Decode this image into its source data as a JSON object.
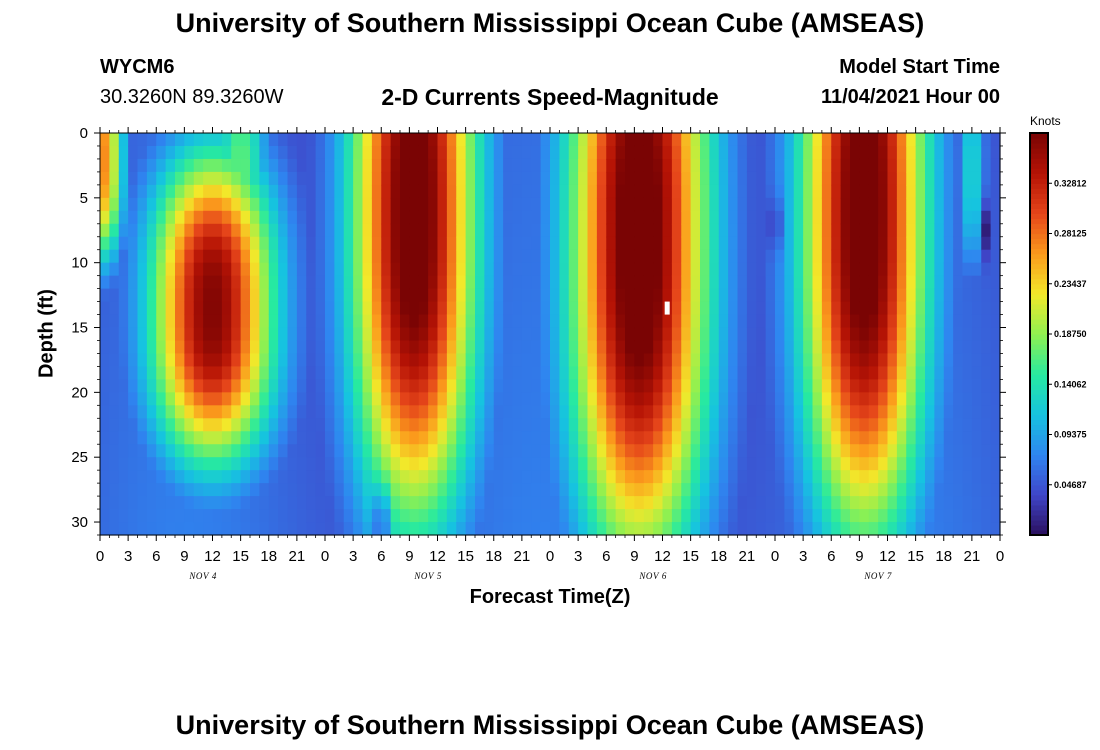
{
  "page": {
    "title_top": "University of Southern Mississippi Ocean Cube (AMSEAS)",
    "title_bottom": "University of Southern Mississippi Ocean Cube (AMSEAS)",
    "station_id": "WYCM6",
    "station_coords": "30.3260N  89.3260W",
    "plot_title": "2-D Currents Speed-Magnitude",
    "model_start_label": "Model Start Time",
    "model_start_value": "11/04/2021 Hour 00"
  },
  "chart_data": {
    "type": "heatmap",
    "title": "2-D Currents Speed-Magnitude",
    "xlabel": "Forecast Time(Z)",
    "ylabel": "Depth (ft)",
    "x_tick_labels": [
      "0",
      "3",
      "6",
      "9",
      "12",
      "15",
      "18",
      "21",
      "0",
      "3",
      "6",
      "9",
      "12",
      "15",
      "18",
      "21",
      "0",
      "3",
      "6",
      "9",
      "12",
      "15",
      "18",
      "21",
      "0",
      "3",
      "6",
      "9",
      "12",
      "15",
      "18",
      "21",
      "0"
    ],
    "x_range_hours": [
      0,
      96
    ],
    "day_labels": [
      {
        "label": "NOV 4",
        "hour": 11
      },
      {
        "label": "NOV 5",
        "hour": 35
      },
      {
        "label": "NOV 6",
        "hour": 59
      },
      {
        "label": "NOV 7",
        "hour": 83
      }
    ],
    "y_tick_labels": [
      "0",
      "5",
      "10",
      "15",
      "20",
      "25",
      "30"
    ],
    "y_range_ft": [
      0,
      31
    ],
    "y_inverted": true,
    "colorbar": {
      "units": "Knots",
      "tick_labels": [
        "0.32812",
        "0.28125",
        "0.23437",
        "0.18750",
        "0.14062",
        "0.09375",
        "0.04687"
      ],
      "tick_values": [
        0.32812,
        0.28125,
        0.23437,
        0.1875,
        0.14062,
        0.09375,
        0.04687
      ],
      "range": [
        0,
        0.375
      ],
      "colors": [
        "#2a0f5c",
        "#3f45c8",
        "#2f85f0",
        "#16c3e0",
        "#27eaa0",
        "#90f050",
        "#f2e82a",
        "#fb9a1c",
        "#e5451a",
        "#b51305",
        "#7a0404"
      ]
    },
    "max_speed_knots": 0.375,
    "background_knots": 0.05,
    "peaks": [
      {
        "label": "Nov 4 peak",
        "center_hour": 12,
        "center_depth_ft": 13.5,
        "half_width_hours": 4.5,
        "depth_spread_ft": 9,
        "peak_knots": 0.34
      },
      {
        "label": "Nov 5 peak",
        "center_hour": 33.5,
        "center_depth_ft": 6,
        "half_width_hours": 4.5,
        "depth_spread_ft": 18,
        "peak_knots": 0.37
      },
      {
        "label": "Nov 6 peak",
        "center_hour": 57.5,
        "center_depth_ft": 8,
        "half_width_hours": 5,
        "depth_spread_ft": 19,
        "peak_knots": 0.375
      },
      {
        "label": "Nov 7 peak",
        "center_hour": 81.5,
        "center_depth_ft": 6,
        "half_width_hours": 4.5,
        "depth_spread_ft": 19,
        "peak_knots": 0.37
      },
      {
        "label": "Nov 4 early surface",
        "center_hour": 0.3,
        "center_depth_ft": 2,
        "half_width_hours": 1.5,
        "depth_spread_ft": 6,
        "peak_knots": 0.24
      },
      {
        "label": "Nov 4 shoulder",
        "center_hour": 15,
        "center_depth_ft": 3,
        "half_width_hours": 2,
        "depth_spread_ft": 6,
        "peak_knots": 0.14
      },
      {
        "label": "Nov 5 surface shoulder",
        "center_hour": 27.3,
        "center_depth_ft": 4,
        "half_width_hours": 1.2,
        "depth_spread_ft": 10,
        "peak_knots": 0.12
      },
      {
        "label": "Nov 6 surface shoulder",
        "center_hour": 51,
        "center_depth_ft": 3,
        "half_width_hours": 1.2,
        "depth_spread_ft": 8,
        "peak_knots": 0.13
      },
      {
        "label": "Nov 7 surface shoulder",
        "center_hour": 75,
        "center_depth_ft": 3,
        "half_width_hours": 1.2,
        "depth_spread_ft": 8,
        "peak_knots": 0.12
      },
      {
        "label": "Nov 7 late",
        "center_hour": 93,
        "center_depth_ft": 3,
        "half_width_hours": 1,
        "depth_spread_ft": 6,
        "peak_knots": 0.1
      }
    ],
    "low_spots": [
      {
        "center_hour": 30,
        "center_depth_ft": 30,
        "half_width_hours": 0.5,
        "depth_spread_ft": 2.5,
        "min_knots": 0.0
      },
      {
        "center_hour": 72,
        "center_depth_ft": 7,
        "half_width_hours": 0.5,
        "depth_spread_ft": 2,
        "min_knots": 0.01
      },
      {
        "center_hour": 94.5,
        "center_depth_ft": 7.5,
        "half_width_hours": 0.5,
        "depth_spread_ft": 2,
        "min_knots": 0.01
      }
    ],
    "missing_cells": [
      {
        "hour": 60.5,
        "depth_ft": 13
      }
    ]
  }
}
